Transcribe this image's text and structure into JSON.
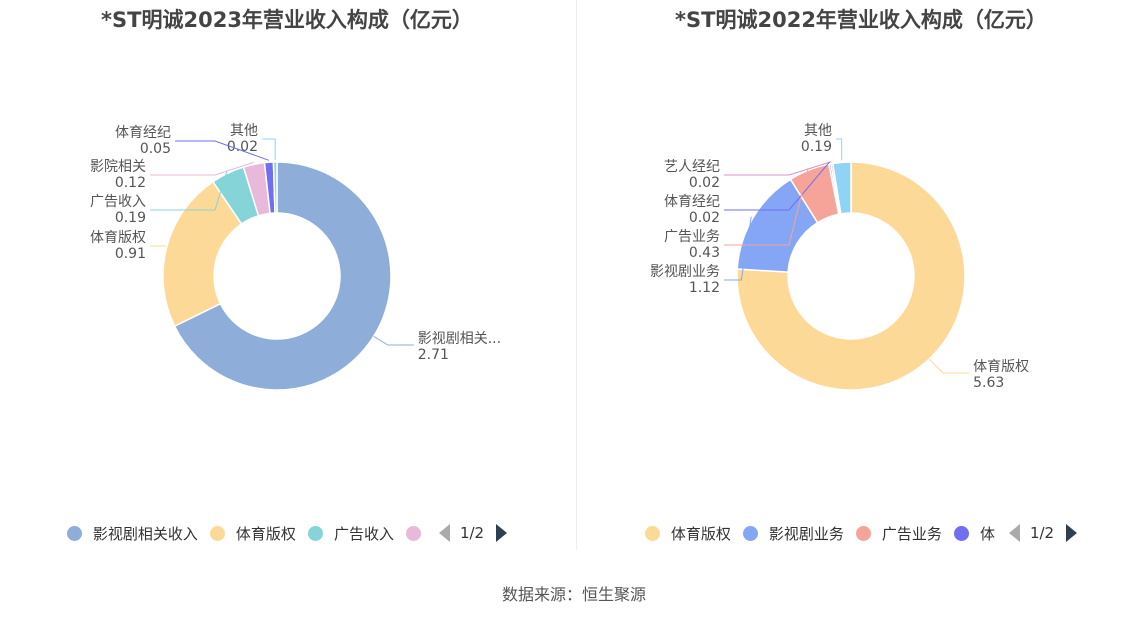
{
  "chart_data": [
    {
      "type": "pie",
      "title": "*ST明诚2023年营业收入构成（亿元）",
      "slices": [
        {
          "label": "影视剧相关收入",
          "display_label": "影视剧相关...",
          "value": 2.71,
          "value_text": "2.71",
          "color": "#8eadd9"
        },
        {
          "label": "体育版权",
          "display_label": "体育版权",
          "value": 0.91,
          "value_text": "0.91",
          "color": "#fdd997"
        },
        {
          "label": "广告收入",
          "display_label": "广告收入",
          "value": 0.19,
          "value_text": "0.19",
          "color": "#85d5d8"
        },
        {
          "label": "影院相关",
          "display_label": "影院相关",
          "value": 0.12,
          "value_text": "0.12",
          "color": "#e8b9da"
        },
        {
          "label": "体育经纪",
          "display_label": "体育经纪",
          "value": 0.05,
          "value_text": "0.05",
          "color": "#6f6ff0"
        },
        {
          "label": "其他",
          "display_label": "其他",
          "value": 0.02,
          "value_text": "0.02",
          "color": "#8fd4f5"
        }
      ],
      "legend": {
        "position": "bottom",
        "items": [
          {
            "label": "影视剧相关收入",
            "color": "#8eadd9"
          },
          {
            "label": "体育版权",
            "color": "#fdd997"
          },
          {
            "label": "广告收入",
            "color": "#85d5d8"
          },
          {
            "label": "",
            "color": "#e8b9da"
          }
        ],
        "page": "1/2"
      }
    },
    {
      "type": "pie",
      "title": "*ST明诚2022年营业收入构成（亿元）",
      "slices": [
        {
          "label": "体育版权",
          "display_label": "体育版权",
          "value": 5.63,
          "value_text": "5.63",
          "color": "#fdd997"
        },
        {
          "label": "影视剧业务",
          "display_label": "影视剧业务",
          "value": 1.12,
          "value_text": "1.12",
          "color": "#85a5f5"
        },
        {
          "label": "广告业务",
          "display_label": "广告业务",
          "value": 0.43,
          "value_text": "0.43",
          "color": "#f6a499"
        },
        {
          "label": "体育经纪",
          "display_label": "体育经纪",
          "value": 0.02,
          "value_text": "0.02",
          "color": "#6f6ff0"
        },
        {
          "label": "艺人经纪",
          "display_label": "艺人经纪",
          "value": 0.02,
          "value_text": "0.02",
          "color": "#e58bc8"
        },
        {
          "label": "其他",
          "display_label": "其他",
          "value": 0.19,
          "value_text": "0.19",
          "color": "#8fd4f5"
        }
      ],
      "legend": {
        "position": "bottom",
        "items": [
          {
            "label": "体育版权",
            "color": "#fdd997"
          },
          {
            "label": "影视剧业务",
            "color": "#85a5f5"
          },
          {
            "label": "广告业务",
            "color": "#f6a499"
          },
          {
            "label": "体",
            "color": "#6f6ff0"
          }
        ],
        "page": "1/2"
      }
    }
  ],
  "source": "数据来源：恒生聚源"
}
